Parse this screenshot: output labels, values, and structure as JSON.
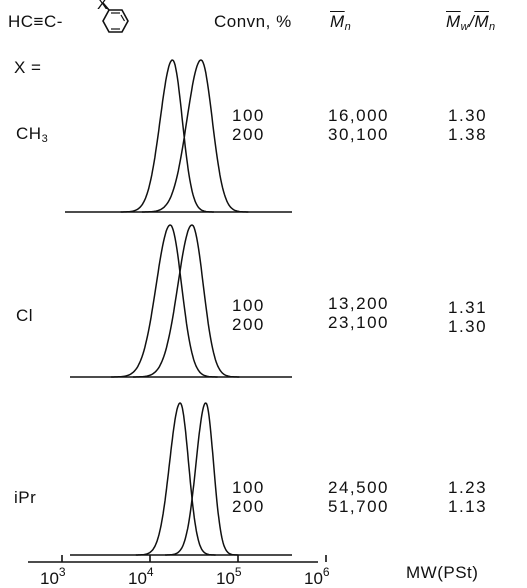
{
  "header": {
    "monomer_formula_left": "HC≡C-",
    "substituent_symbol": "X",
    "col_convn": "Convn, %",
    "col_mn_main": "M",
    "col_mn_sub": "n",
    "col_mwmn_w": "M",
    "col_mwmn_w_sub": "w",
    "col_mwmn_slash": "/",
    "col_mwmn_n": "M",
    "col_mwmn_n_sub": "n"
  },
  "x_label": "X =",
  "chart_data": {
    "type": "line",
    "title": "",
    "xlabel": "MW(PSt)",
    "x_scale": "log",
    "xlim": [
      500,
      1500000
    ],
    "x_ticks": [
      {
        "value": 1000,
        "base": "10",
        "exp": "3"
      },
      {
        "value": 10000,
        "base": "10",
        "exp": "4"
      },
      {
        "value": 100000,
        "base": "10",
        "exp": "5"
      },
      {
        "value": 1000000,
        "base": "10",
        "exp": "6"
      }
    ],
    "panels": [
      {
        "label_main": "CH",
        "label_sub": "3",
        "rows": [
          {
            "convn": "100",
            "mn": "16,000",
            "pdi": "1.30",
            "peak_mw": 18000,
            "width": 0.14
          },
          {
            "convn": "200",
            "mn": "30,100",
            "pdi": "1.38",
            "peak_mw": 38000,
            "width": 0.16
          }
        ]
      },
      {
        "label_main": "Cl",
        "label_sub": "",
        "rows": [
          {
            "convn": "100",
            "mn": "13,200",
            "pdi": "1.31",
            "peak_mw": 17000,
            "width": 0.16
          },
          {
            "convn": "200",
            "mn": "23,100",
            "pdi": "1.30",
            "peak_mw": 30000,
            "width": 0.16
          }
        ]
      },
      {
        "label_main": "iPr",
        "label_sub": "",
        "rows": [
          {
            "convn": "100",
            "mn": "24,500",
            "pdi": "1.23",
            "peak_mw": 22000,
            "width": 0.12
          },
          {
            "convn": "200",
            "mn": "51,700",
            "pdi": "1.13",
            "peak_mw": 43000,
            "width": 0.11
          }
        ]
      }
    ]
  }
}
